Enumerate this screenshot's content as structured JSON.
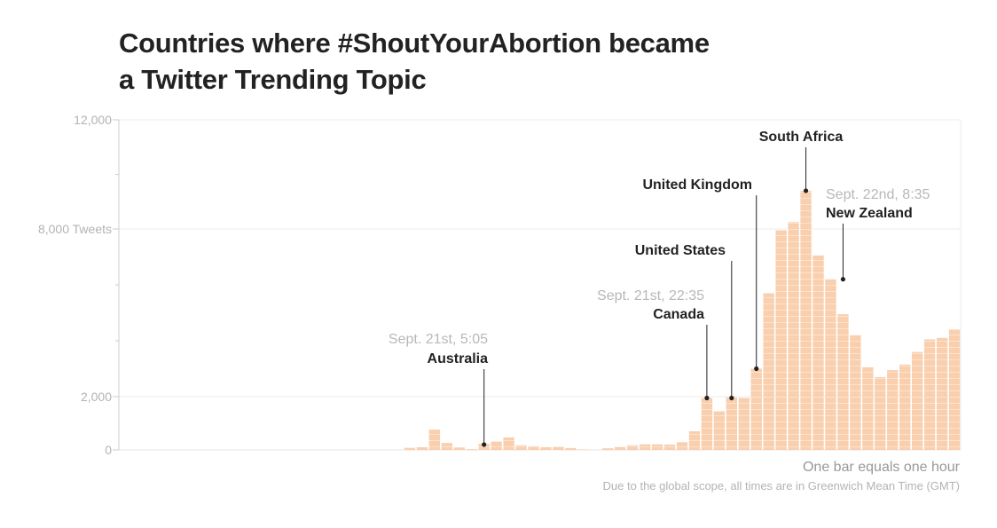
{
  "header": {
    "title_line1": "Countries where #ShoutYourAbortion became",
    "title_line2": "a Twitter Trending Topic"
  },
  "footer": {
    "note": "One bar equals one hour",
    "source": "Due to the global scope, all times are in Greenwich Mean Time (GMT)"
  },
  "colors": {
    "bar": "#f9cfae",
    "bar_stripe": "#fbe3cf",
    "annotation_line": "#222222",
    "grid": "#eeeeee"
  },
  "chart_data": {
    "type": "bar",
    "title": "Countries where #ShoutYourAbortion became a Twitter Trending Topic",
    "xlabel": "",
    "ylabel": "",
    "unit_note": "One bar equals one hour",
    "ylim": [
      0,
      12000
    ],
    "y_tick_labels": [
      "0",
      "2,000",
      "8,000 Tweets",
      "12,000"
    ],
    "y_tick_values": [
      0,
      2000,
      8000,
      12000
    ],
    "y_minor_ticks": [
      4000,
      6000,
      10000
    ],
    "values": [
      0,
      0,
      0,
      0,
      0,
      0,
      0,
      0,
      0,
      0,
      0,
      0,
      0,
      0,
      0,
      0,
      0,
      0,
      0,
      0,
      0,
      0,
      0,
      80,
      100,
      760,
      260,
      90,
      30,
      230,
      310,
      470,
      170,
      140,
      100,
      120,
      70,
      20,
      0,
      60,
      110,
      170,
      210,
      210,
      200,
      290,
      700,
      1950,
      1450,
      1980,
      1950,
      3000,
      5700,
      7950,
      8250,
      9400,
      7050,
      6200,
      4950,
      4200,
      3050,
      2700,
      2950,
      3150,
      3600,
      4050,
      4100,
      4400
    ],
    "annotations": [
      {
        "date": "Sept. 21st, 5:05",
        "country": "Australia",
        "value": 200
      },
      {
        "date": "Sept. 21st, 22:35",
        "country": "Canada",
        "value": 1950
      },
      {
        "date": "",
        "country": "United States",
        "value": 1950
      },
      {
        "date": "",
        "country": "United Kingdom",
        "value": 3000
      },
      {
        "date": "",
        "country": "South Africa",
        "value": 9400
      },
      {
        "date": "Sept. 22nd, 8:35",
        "country": "New Zealand",
        "value": 6200
      }
    ]
  }
}
